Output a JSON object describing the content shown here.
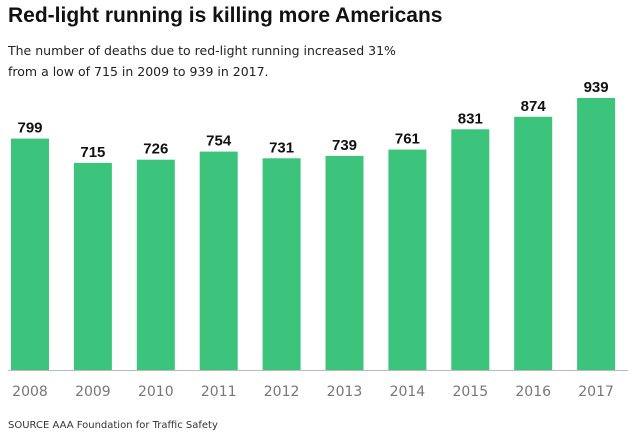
{
  "header": {
    "title": "Red-light running is killing more Americans",
    "subtitle": "The number of deaths due to red-light running increased 31% from a low of 715 in 2009 to 939 in 2017."
  },
  "footer": {
    "source": "SOURCE AAA Foundation for Traffic Safety"
  },
  "colors": {
    "bar": "#3cc47c",
    "baseline": "#bbbbbb",
    "value_label": "#111111",
    "tick_label": "#777777"
  },
  "chart_data": {
    "type": "bar",
    "title": "Red-light running is killing more Americans",
    "subtitle": "The number of deaths due to red-light running increased 31% from a low of 715 in 2009 to 939 in 2017.",
    "xlabel": "",
    "ylabel": "",
    "categories": [
      "2008",
      "2009",
      "2010",
      "2011",
      "2012",
      "2013",
      "2014",
      "2015",
      "2016",
      "2017"
    ],
    "values": [
      799,
      715,
      726,
      754,
      731,
      739,
      761,
      831,
      874,
      939
    ],
    "value_labels": [
      "799",
      "715",
      "726",
      "754",
      "731",
      "739",
      "761",
      "831",
      "874",
      "939"
    ],
    "ylim": [
      0,
      939
    ],
    "grid": false,
    "legend": "none"
  }
}
